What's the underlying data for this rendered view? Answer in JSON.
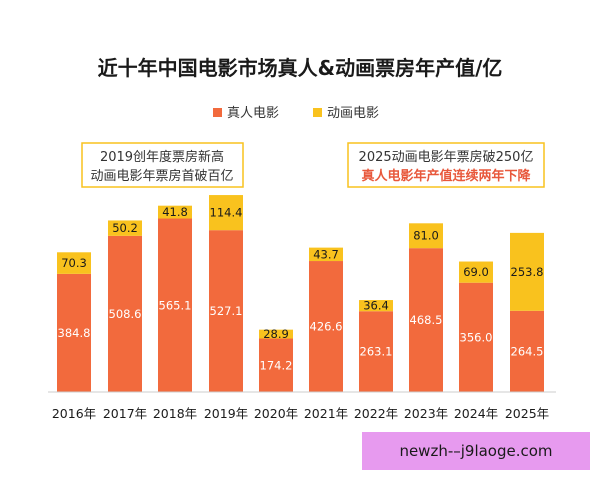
{
  "chart_data": {
    "type": "bar",
    "stacked": true,
    "title": "近十年中国电影市场真人&动画票房年产值/亿",
    "categories": [
      "2016年",
      "2017年",
      "2018年",
      "2019年",
      "2020年",
      "2021年",
      "2022年",
      "2023年",
      "2024年",
      "2025年"
    ],
    "series": [
      {
        "name": "真人电影",
        "color": "#f26a3d",
        "values": [
          384.8,
          508.6,
          565.1,
          527.1,
          174.2,
          426.6,
          263.1,
          468.5,
          356.0,
          264.5
        ],
        "labels": [
          "384.8",
          "508.6",
          "565.1",
          "527.1",
          "174.2",
          "426.6",
          "263.1",
          "468.5",
          "356.0",
          "264.5"
        ]
      },
      {
        "name": "动画电影",
        "color": "#f9c21e",
        "values": [
          70.3,
          50.2,
          41.8,
          114.4,
          28.9,
          43.7,
          36.4,
          81.0,
          69.0,
          253.8
        ],
        "labels": [
          "70.3",
          "50.2",
          "41.8",
          "114.4",
          "28.9",
          "43.7",
          "36.4",
          "81.0",
          "69.0",
          "253.8"
        ]
      }
    ],
    "legend_position": "top-center",
    "grid": false,
    "ylim": [
      0,
      650
    ],
    "annotations": [
      {
        "lines": [
          "2019创年度票房新高",
          "动画电影年票房首破百亿"
        ]
      },
      {
        "lines": [
          "2025动画电影年票房破250亿",
          "真人电影年产值连续两年下降"
        ]
      }
    ]
  },
  "watermark": {
    "text": "newzh-–j9laoge.com"
  }
}
